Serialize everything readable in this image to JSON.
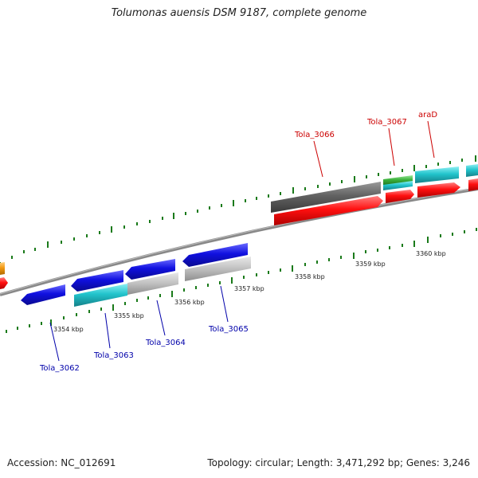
{
  "title": "Tolumonas auensis DSM 9187, complete genome",
  "accession": "Accession: NC_012691",
  "summary": "Topology: circular; Length: 3,471,292 bp; Genes: 3,246",
  "colors": {
    "backbone": "#808080",
    "tick": "#1a7a1a",
    "forward_label": "#cc0000",
    "reverse_label": "#0000aa",
    "blue": "#1010e0",
    "cyan": "#22c4cc",
    "grey": "#bdbdbd",
    "dark_grey": "#606060",
    "red": "#ff1010",
    "green": "#3ab03a",
    "orange": "#f39a12"
  },
  "kbp_labels": [
    "3354 kbp",
    "3355 kbp",
    "3356 kbp",
    "3357 kbp",
    "3358 kbp",
    "3359 kbp",
    "3360 kbp"
  ],
  "gene_labels": [
    {
      "text": "Tola_3062",
      "strand": "reverse"
    },
    {
      "text": "Tola_3063",
      "strand": "reverse"
    },
    {
      "text": "Tola_3064",
      "strand": "reverse"
    },
    {
      "text": "Tola_3065",
      "strand": "reverse"
    },
    {
      "text": "Tola_3066",
      "strand": "forward"
    },
    {
      "text": "Tola_3067",
      "strand": "forward"
    },
    {
      "text": "araD",
      "strand": "forward"
    }
  ]
}
